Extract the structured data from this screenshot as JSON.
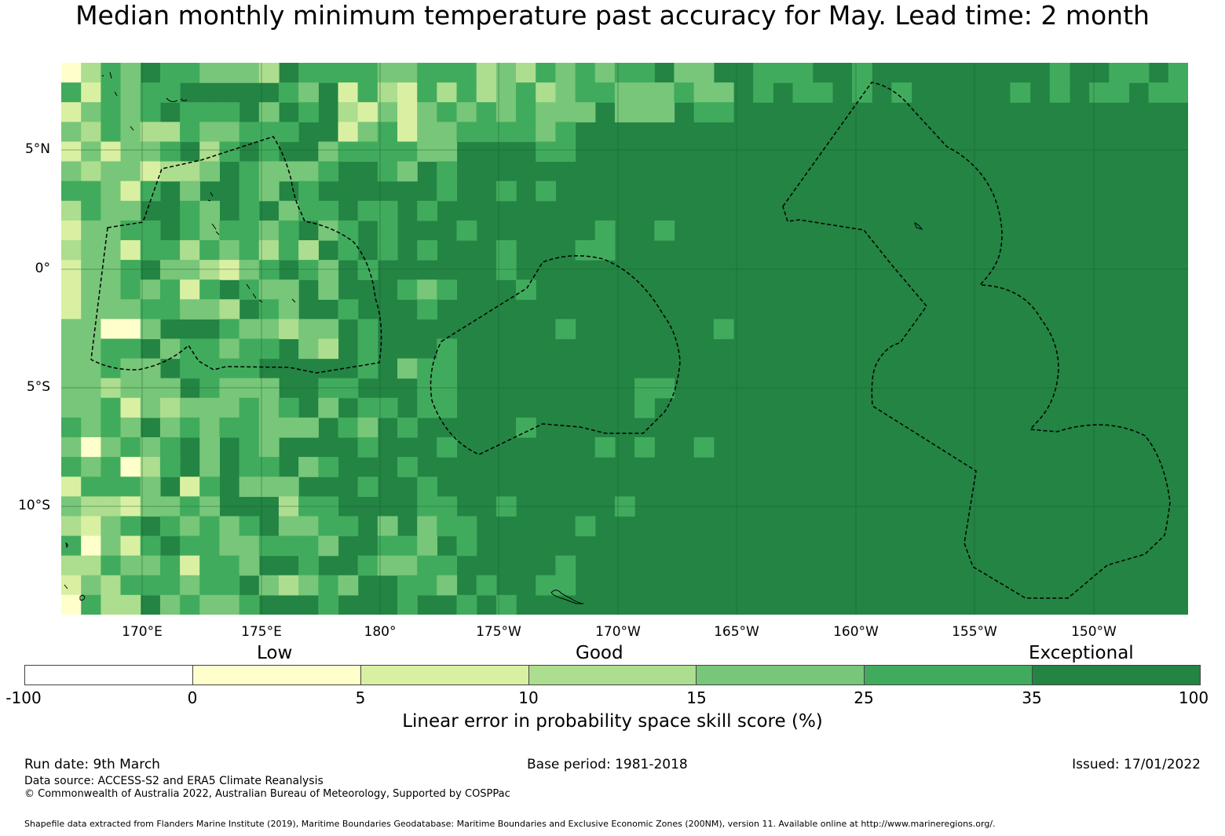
{
  "title": "Median monthly minimum temperature past accuracy for May. Lead time: 2 month",
  "map": {
    "lat_labels": [
      "5°N",
      "0°",
      "5°S",
      "10°S"
    ],
    "lon_labels": [
      "170°E",
      "175°E",
      "180°",
      "175°W",
      "170°W",
      "165°W",
      "160°W",
      "155°W",
      "150°W"
    ],
    "base_color": "#238443",
    "boundary_color": "#000000",
    "coast_color": "#000000"
  },
  "legend": {
    "categories": [
      "Low",
      "Good",
      "Exceptional"
    ],
    "ticks": [
      "-100",
      "0",
      "5",
      "10",
      "15",
      "25",
      "35",
      "100"
    ],
    "colors": [
      "#ffffff",
      "#ffffcc",
      "#d9f0a3",
      "#addd8e",
      "#78c679",
      "#41ab5d",
      "#238443"
    ],
    "label": "Linear error in probability space skill score (%)"
  },
  "footer": {
    "run_date": "Run date: 9th March",
    "base_period": "Base period: 1981-2018",
    "issued": "Issued: 17/01/2022",
    "data_source": "Data source: ACCESS-S2 and ERA5 Climate Reanalysis",
    "copyright": "© Commonwealth of Australia 2022, Australian Bureau of Meteorology, Supported by COSPPac",
    "shapefile": "Shapefile data extracted from Flanders Marine Institute (2019), Maritime Boundaries Geodatabase: Maritime Boundaries and Exclusive Economic Zones (200NM), version 11. Available online at http://www.marineregions.org/."
  }
}
